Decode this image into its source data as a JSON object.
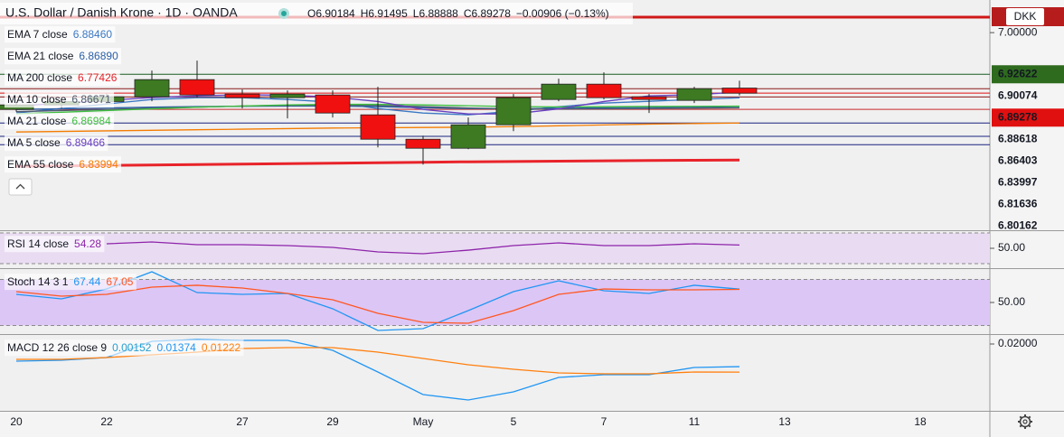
{
  "header": {
    "title": "U.S. Dollar / Danish Krone · 1D · OANDA",
    "ohlc": [
      "O6.90184",
      "H6.91495",
      "L6.88888",
      "C6.89278"
    ],
    "change": "−0.00906 (−0.13%)",
    "currency": "DKK"
  },
  "chart_data": [
    {
      "type": "candlestick",
      "categories": [
        "20",
        null,
        "22",
        null,
        null,
        "27",
        null,
        "29",
        null,
        "May",
        null,
        "5",
        null,
        "7",
        null,
        "11",
        null,
        "13",
        null,
        null,
        "18"
      ],
      "open": [
        6.864,
        6.872,
        6.878,
        6.8864,
        6.9168,
        6.8912,
        6.8848,
        6.8896,
        6.8544,
        6.8112,
        6.7952,
        6.8368,
        6.8816,
        6.9088,
        6.8864,
        6.88,
        6.90184,
        null,
        null,
        null,
        null
      ],
      "high": [
        6.877,
        6.883,
        6.892,
        6.9328,
        6.9504,
        6.8992,
        6.8976,
        6.8976,
        6.904,
        6.8176,
        6.8496,
        6.8912,
        6.9184,
        6.9296,
        6.8912,
        6.904,
        6.91495,
        null,
        null,
        null,
        null
      ],
      "low": [
        6.86,
        6.866,
        6.873,
        6.8784,
        6.8848,
        6.8656,
        6.848,
        6.8496,
        6.7968,
        6.7664,
        6.7936,
        6.8256,
        6.8784,
        6.8816,
        6.8576,
        6.8752,
        6.88888,
        null,
        null,
        null,
        null
      ],
      "close": [
        6.872,
        6.878,
        6.8864,
        6.9168,
        6.8896,
        6.8848,
        6.8912,
        6.8576,
        6.8112,
        6.7952,
        6.8368,
        6.8848,
        6.9088,
        6.8848,
        6.8816,
        6.9008,
        6.89278,
        null,
        null,
        null,
        null
      ],
      "up_color": "#3d7a22",
      "down_color": "#f01010",
      "series": [
        {
          "name": "EMA 7 close",
          "legend_value": "6.88460",
          "color": "#3b78c4",
          "values": [
            6.8576,
            6.8656,
            6.8736,
            6.8816,
            6.8848,
            6.8848,
            6.8816,
            6.8768,
            6.8656,
            6.8576,
            6.8544,
            6.8608,
            6.8688,
            6.8752,
            6.8784,
            6.8816,
            6.8846,
            null,
            null,
            null,
            null
          ]
        },
        {
          "name": "EMA 21 close",
          "legend_value": "6.86890",
          "color": "#2a5fa5",
          "values": [
            6.864,
            6.865,
            6.8665,
            6.868,
            6.869,
            6.8695,
            6.87,
            6.87,
            6.869,
            6.867,
            6.8655,
            6.865,
            6.866,
            6.867,
            6.8675,
            6.868,
            6.8689,
            null,
            null,
            null,
            null
          ]
        },
        {
          "name": "MA 200 close",
          "legend_value": "6.77426",
          "color": "#e8232a",
          "values": [
            6.7632,
            6.764,
            6.7648,
            6.7656,
            6.7664,
            6.7672,
            6.768,
            6.7688,
            6.7696,
            6.7704,
            6.7712,
            6.7718,
            6.7724,
            6.773,
            6.7736,
            6.774,
            6.7743,
            null,
            null,
            null,
            null
          ]
        },
        {
          "name": "MA 10 close",
          "legend_value": "6.86671",
          "color": "#4e5b6e",
          "values": [
            6.86,
            6.862,
            6.864,
            6.866,
            6.868,
            6.87,
            6.8712,
            6.8715,
            6.871,
            6.869,
            6.8665,
            6.865,
            6.8645,
            6.865,
            6.8655,
            6.8662,
            6.8667,
            null,
            null,
            null,
            null
          ]
        },
        {
          "name": "MA 21 close",
          "legend_value": "6.86984",
          "color": "#3fbf3f",
          "values": [
            6.856,
            6.859,
            6.862,
            6.865,
            6.868,
            6.87,
            6.872,
            6.873,
            6.873,
            6.872,
            6.8705,
            6.869,
            6.8685,
            6.8688,
            6.8692,
            6.8695,
            6.8698,
            null,
            null,
            null,
            null
          ]
        },
        {
          "name": "MA 5 close",
          "legend_value": "6.89466",
          "color": "#6a3fc0",
          "values": [
            6.87,
            6.875,
            6.88,
            6.885,
            6.888,
            6.89,
            6.889,
            6.886,
            6.878,
            6.864,
            6.856,
            6.856,
            6.865,
            6.878,
            6.888,
            6.89,
            6.8947,
            null,
            null,
            null,
            null
          ]
        },
        {
          "name": "EMA 55 close",
          "legend_value": "6.83994",
          "color": "#f57c00",
          "values": [
            6.824,
            6.825,
            6.826,
            6.827,
            6.828,
            6.829,
            6.83,
            6.831,
            6.8315,
            6.832,
            6.8325,
            6.8335,
            6.835,
            6.8365,
            6.838,
            6.839,
            6.8399,
            null,
            null,
            null,
            null
          ]
        }
      ],
      "price_lines": [
        {
          "value": 6.92622,
          "color": "#1b5e20",
          "label_fill": "#2e6b1e"
        },
        {
          "value": 6.90074,
          "color": "#8b1a1a"
        },
        {
          "value": 6.89278,
          "color": "#e01010",
          "label_fill": "#e01010"
        },
        {
          "value": 6.88618,
          "color": "#8b1a1a"
        },
        {
          "value": 6.86403,
          "color": "#c62828"
        },
        {
          "value": 6.83997,
          "color": "#1a237e"
        },
        {
          "value": 6.81636,
          "color": "#1a237e"
        },
        {
          "value": 6.80162,
          "color": "#1a237e"
        }
      ],
      "ylim": [
        6.65,
        7.045
      ],
      "yticks": [
        {
          "value": 7,
          "label": "7.00000"
        }
      ],
      "grid": false
    },
    {
      "type": "line",
      "title": "RSI 14 close",
      "band": [
        30,
        70
      ],
      "band_color": "#e9dcf2",
      "series": [
        {
          "legend_value": "54.28",
          "color": "#8e24aa",
          "values": [
            null,
            null,
            55.9,
            58.2,
            54.7,
            54.7,
            53.5,
            51.2,
            45.3,
            42.9,
            47.6,
            53.5,
            57.1,
            53.5,
            53.5,
            55.9,
            54.28,
            null,
            null,
            null,
            null
          ]
        }
      ],
      "ylim": [
        24.12,
        72.35
      ],
      "yticks": [
        {
          "value": 50,
          "label": "50.00"
        }
      ],
      "grid": false
    },
    {
      "type": "line",
      "title": "Stoch 14 3 1",
      "band": [
        20,
        80
      ],
      "band_color": "#dcc6f5",
      "series": [
        {
          "legend_value": "67.44",
          "color": "#2196f3",
          "values": [
            60.6,
            54.7,
            67.6,
            90.0,
            62.9,
            60.6,
            61.8,
            41.8,
            13.5,
            15.9,
            39.4,
            64.1,
            78.2,
            65.3,
            61.8,
            72.4,
            67.44,
            null,
            null,
            null,
            null
          ]
        },
        {
          "legend_value": "67.05",
          "color": "#ff5722",
          "values": [
            64.1,
            58.2,
            60.6,
            70.0,
            72.4,
            68.8,
            61.8,
            53.5,
            35.9,
            24.1,
            22.9,
            39.4,
            60.6,
            67.6,
            66.5,
            66.5,
            67.05,
            null,
            null,
            null,
            null
          ]
        }
      ],
      "ylim": [
        8.82,
        93.53
      ],
      "yticks": [
        {
          "value": 50,
          "label": "50.00"
        }
      ],
      "grid": false
    },
    {
      "type": "line",
      "title": "MACD 12 26 close 9",
      "histogram_label": "0.00152",
      "histogram_color": "#26a0d0",
      "series": [
        {
          "legend_value": "0.01374",
          "color": "#2196f3",
          "values": [
            0.01525,
            0.0155,
            0.01625,
            0.02075,
            0.02125,
            0.021,
            0.021,
            0.01825,
            0.01225,
            0.006,
            0.0045,
            0.00675,
            0.01075,
            0.0115,
            0.0115,
            0.0135,
            0.01374,
            null,
            null,
            null,
            null
          ]
        },
        {
          "legend_value": "0.01222",
          "color": "#ff7f0e",
          "values": [
            0.01575,
            0.01575,
            0.01625,
            0.017,
            0.01775,
            0.01875,
            0.019,
            0.019,
            0.01775,
            0.016,
            0.01425,
            0.013,
            0.012,
            0.01175,
            0.01175,
            0.01225,
            0.01222,
            null,
            null,
            null,
            null
          ]
        }
      ],
      "ylim": [
        0.0015,
        0.0225
      ],
      "yticks": [
        {
          "value": 0.02,
          "label": "0.02000"
        }
      ],
      "grid": false
    }
  ]
}
